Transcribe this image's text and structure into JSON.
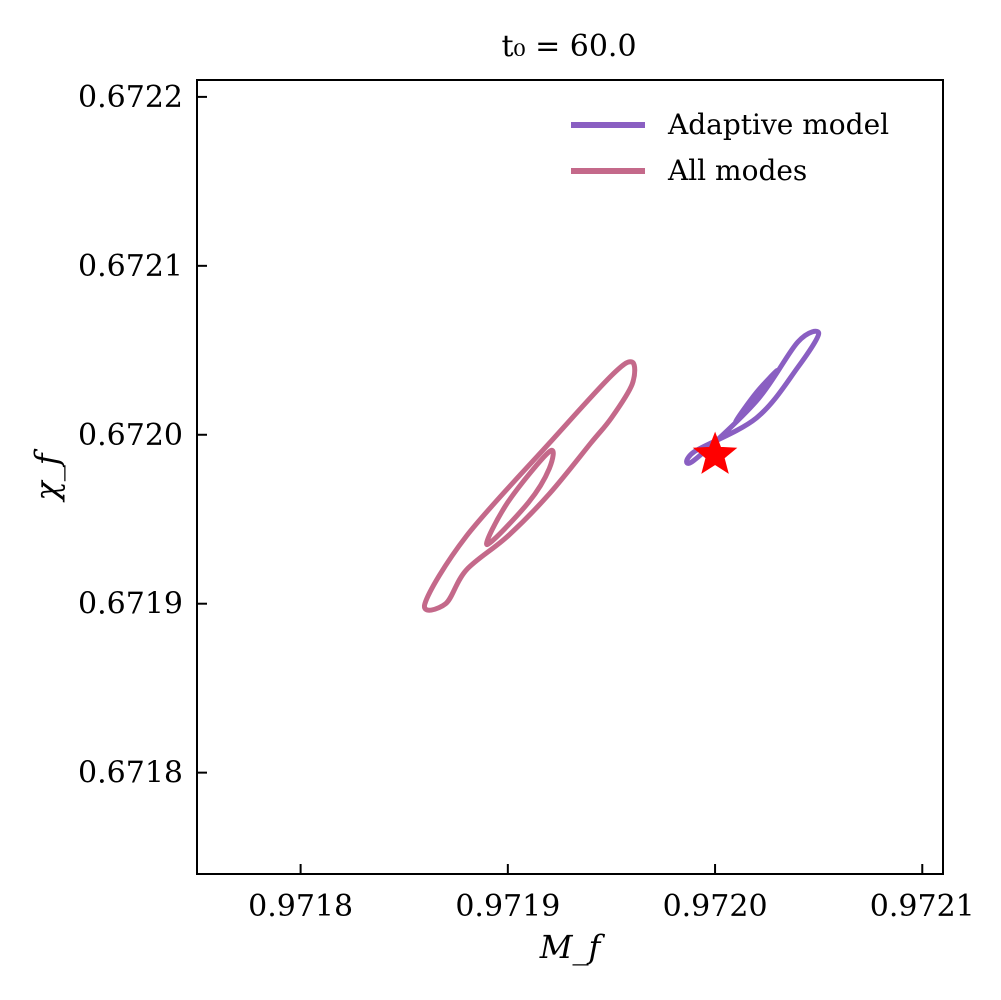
{
  "chart_data": {
    "type": "contour",
    "title": "t₀ = 60.0",
    "xlabel": "M_f",
    "ylabel": "χ_f",
    "xlim": [
      0.97175,
      0.97211
    ],
    "ylim": [
      0.67174,
      0.67221
    ],
    "xticks": [
      {
        "value": 0.9718,
        "label": "0.9718"
      },
      {
        "value": 0.9719,
        "label": "0.9719"
      },
      {
        "value": 0.972,
        "label": "0.9720"
      },
      {
        "value": 0.9721,
        "label": "0.9721"
      }
    ],
    "yticks": [
      {
        "value": 0.6718,
        "label": "0.6718"
      },
      {
        "value": 0.6719,
        "label": "0.6719"
      },
      {
        "value": 0.672,
        "label": "0.6720"
      },
      {
        "value": 0.6721,
        "label": "0.6721"
      },
      {
        "value": 0.6722,
        "label": "0.6722"
      }
    ],
    "legend_position": "top-right",
    "series": [
      {
        "name": "Adaptive model",
        "color": "#8a5fc2",
        "contours": [
          [
            [
              0.97199,
              0.671985
            ],
            [
              0.97202,
              0.67202
            ],
            [
              0.97204,
              0.672055
            ],
            [
              0.97205,
              0.67206
            ],
            [
              0.97204,
              0.67204
            ],
            [
              0.97202,
              0.67201
            ],
            [
              0.97199,
              0.67199
            ]
          ],
          [
            [
              0.97201,
              0.672008
            ],
            [
              0.97202,
              0.672025
            ],
            [
              0.97203,
              0.672038
            ],
            [
              0.97202,
              0.672022
            ],
            [
              0.97201,
              0.672008
            ]
          ]
        ]
      },
      {
        "name": "All modes",
        "color": "#c4698a",
        "contours": [
          [
            [
              0.97186,
              0.6719
            ],
            [
              0.97188,
              0.67194
            ],
            [
              0.97192,
              0.671995
            ],
            [
              0.97195,
              0.672035
            ],
            [
              0.97196,
              0.672043
            ],
            [
              0.97196,
              0.67203
            ],
            [
              0.97195,
              0.67201
            ],
            [
              0.97194,
              0.671995
            ],
            [
              0.97192,
              0.671965
            ],
            [
              0.9719,
              0.67194
            ],
            [
              0.97188,
              0.67192
            ],
            [
              0.97187,
              0.6719
            ],
            [
              0.97186,
              0.6719
            ]
          ],
          [
            [
              0.97189,
              0.671935
            ],
            [
              0.9719,
              0.67196
            ],
            [
              0.97192,
              0.67199
            ],
            [
              0.97192,
              0.67198
            ],
            [
              0.97191,
              0.67196
            ],
            [
              0.97189,
              0.671935
            ]
          ]
        ]
      }
    ],
    "marker": {
      "type": "star",
      "x": 0.972,
      "y": 0.671988,
      "color": "#ff0000"
    }
  }
}
